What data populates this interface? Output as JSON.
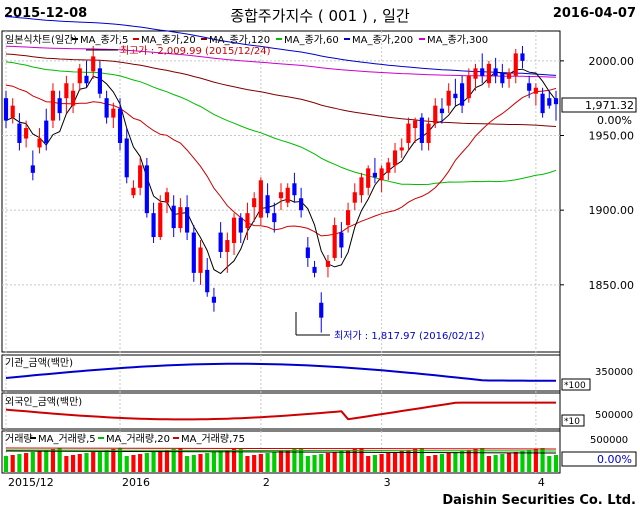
{
  "header": {
    "start_date": "2015-12-08",
    "title": "종합주가지수 ( 001 ) , 일간",
    "end_date": "2016-04-07"
  },
  "footer": {
    "brand": "Daishin Securities Co. Ltd."
  },
  "price_panel": {
    "legend": [
      {
        "label": "일본식차트(일간)",
        "color": "#000000"
      },
      {
        "label": "MA_종가,5",
        "color": "#000000"
      },
      {
        "label": "MA_종가,20",
        "color": "#cc0000"
      },
      {
        "label": "MA_종가,120",
        "color": "#800000"
      },
      {
        "label": "MA_종가,60",
        "color": "#00bb00"
      },
      {
        "label": "MA_종가,200",
        "color": "#0000cc"
      },
      {
        "label": "MA_종가,300",
        "color": "#cc00cc"
      }
    ],
    "high_note": "최고가 : 2,009.99 (2015/12/24)",
    "low_note": "최저가 : 1,817.97 (2016/02/12)",
    "last_value": "1,971.32",
    "change_pct": "0.00%",
    "y_ticks": [
      "2000.00",
      "1950.00",
      "1900.00",
      "1850.00"
    ]
  },
  "inst_panel": {
    "label": "기관_금액(백만)",
    "tick": "350000",
    "unit": "*100"
  },
  "foreign_panel": {
    "label": "외국인_금액(백만)",
    "tick": "500000",
    "unit": "*10"
  },
  "volume_panel": {
    "legend": [
      {
        "label": "거래량",
        "color": "#cc0000"
      },
      {
        "label": "MA_거래량,5",
        "color": "#000000"
      },
      {
        "label": "MA_거래량,20",
        "color": "#00bb00"
      },
      {
        "label": "MA_거래량,75",
        "color": "#cc0000"
      }
    ],
    "tick": "500000",
    "change_pct": "0.00%"
  },
  "x_axis_labels": [
    {
      "label": "2015/12",
      "index": 0
    },
    {
      "label": "2016",
      "index": 17
    },
    {
      "label": "2",
      "index": 38
    },
    {
      "label": "3",
      "index": 56
    },
    {
      "label": "4",
      "index": 79
    }
  ],
  "colors": {
    "up": "#ff0000",
    "down": "#0000ff"
  },
  "chart_data": {
    "type": "candlestick",
    "ylim": [
      1805,
      2020
    ],
    "candles": [
      [
        1975,
        1980,
        1955,
        1960
      ],
      [
        1962,
        1975,
        1958,
        1970
      ],
      [
        1958,
        1965,
        1940,
        1945
      ],
      [
        1948,
        1960,
        1942,
        1955
      ],
      [
        1930,
        1940,
        1920,
        1925
      ],
      [
        1942,
        1955,
        1938,
        1948
      ],
      [
        1960,
        1968,
        1940,
        1945
      ],
      [
        1960,
        1985,
        1955,
        1980
      ],
      [
        1975,
        1980,
        1960,
        1965
      ],
      [
        1975,
        1990,
        1965,
        1985
      ],
      [
        1970,
        1985,
        1965,
        1980
      ],
      [
        1985,
        1998,
        1980,
        1995
      ],
      [
        1990,
        2000,
        1982,
        1985
      ],
      [
        1993,
        2010,
        1988,
        2003
      ],
      [
        1995,
        2000,
        1975,
        1978
      ],
      [
        1975,
        1980,
        1958,
        1962
      ],
      [
        1962,
        1972,
        1955,
        1968
      ],
      [
        1968,
        1975,
        1940,
        1945
      ],
      [
        1948,
        1955,
        1918,
        1922
      ],
      [
        1910,
        1920,
        1908,
        1915
      ],
      [
        1915,
        1935,
        1910,
        1930
      ],
      [
        1930,
        1935,
        1895,
        1898
      ],
      [
        1898,
        1905,
        1878,
        1882
      ],
      [
        1882,
        1910,
        1880,
        1905
      ],
      [
        1905,
        1915,
        1898,
        1912
      ],
      [
        1903,
        1910,
        1882,
        1888
      ],
      [
        1888,
        1908,
        1885,
        1902
      ],
      [
        1902,
        1910,
        1880,
        1885
      ],
      [
        1885,
        1890,
        1852,
        1858
      ],
      [
        1858,
        1880,
        1850,
        1875
      ],
      [
        1860,
        1868,
        1842,
        1845
      ],
      [
        1842,
        1848,
        1832,
        1838
      ],
      [
        1885,
        1892,
        1868,
        1872
      ],
      [
        1872,
        1885,
        1858,
        1880
      ],
      [
        1878,
        1898,
        1870,
        1895
      ],
      [
        1895,
        1898,
        1878,
        1885
      ],
      [
        1888,
        1905,
        1880,
        1898
      ],
      [
        1902,
        1912,
        1892,
        1908
      ],
      [
        1895,
        1922,
        1890,
        1920
      ],
      [
        1910,
        1918,
        1895,
        1898
      ],
      [
        1898,
        1905,
        1885,
        1892
      ],
      [
        1908,
        1918,
        1900,
        1912
      ],
      [
        1905,
        1918,
        1902,
        1915
      ],
      [
        1918,
        1925,
        1905,
        1910
      ],
      [
        1908,
        1915,
        1895,
        1900
      ],
      [
        1875,
        1882,
        1862,
        1868
      ],
      [
        1862,
        1866,
        1855,
        1858
      ],
      [
        1838,
        1845,
        1818,
        1828
      ],
      [
        1862,
        1870,
        1855,
        1866
      ],
      [
        1868,
        1895,
        1866,
        1890
      ],
      [
        1885,
        1892,
        1868,
        1875
      ],
      [
        1890,
        1905,
        1885,
        1900
      ],
      [
        1905,
        1918,
        1900,
        1912
      ],
      [
        1910,
        1925,
        1905,
        1922
      ],
      [
        1915,
        1930,
        1910,
        1928
      ],
      [
        1925,
        1935,
        1918,
        1922
      ],
      [
        1920,
        1930,
        1912,
        1928
      ],
      [
        1925,
        1935,
        1920,
        1932
      ],
      [
        1930,
        1945,
        1925,
        1940
      ],
      [
        1940,
        1948,
        1935,
        1942
      ],
      [
        1945,
        1962,
        1940,
        1958
      ],
      [
        1955,
        1962,
        1945,
        1960
      ],
      [
        1962,
        1965,
        1940,
        1945
      ],
      [
        1945,
        1962,
        1940,
        1958
      ],
      [
        1958,
        1975,
        1955,
        1970
      ],
      [
        1968,
        1975,
        1958,
        1965
      ],
      [
        1970,
        1985,
        1965,
        1980
      ],
      [
        1978,
        1988,
        1970,
        1975
      ],
      [
        1985,
        1990,
        1965,
        1970
      ],
      [
        1975,
        1995,
        1972,
        1990
      ],
      [
        1988,
        1998,
        1980,
        1995
      ],
      [
        1995,
        2005,
        1985,
        1990
      ],
      [
        1985,
        2000,
        1982,
        1998
      ],
      [
        1995,
        2002,
        1985,
        1990
      ],
      [
        1992,
        1998,
        1982,
        1985
      ],
      [
        1988,
        1995,
        1982,
        1992
      ],
      [
        1990,
        2008,
        1985,
        2005
      ],
      [
        2005,
        2010,
        1995,
        2000
      ],
      [
        1985,
        1990,
        1975,
        1980
      ],
      [
        1978,
        1985,
        1970,
        1982
      ],
      [
        1978,
        1982,
        1962,
        1965
      ],
      [
        1975,
        1980,
        1968,
        1970
      ],
      [
        1975,
        1980,
        1960,
        1971
      ]
    ],
    "x_categories_sparse": [
      "2015/12",
      "2016",
      "2",
      "3",
      "4"
    ]
  }
}
